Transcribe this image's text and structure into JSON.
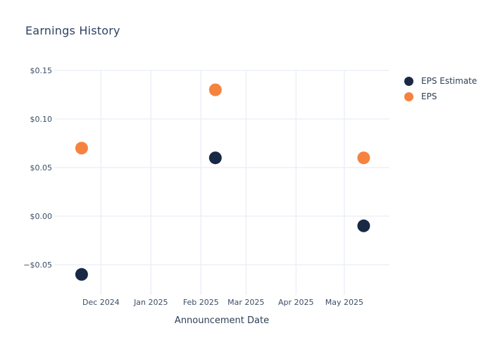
{
  "chart_data": {
    "type": "scatter",
    "title": "Earnings History",
    "xlabel": "Announcement Date",
    "ylabel": "",
    "legend_position": "right",
    "grid": true,
    "x_tick_labels": [
      "Dec 2024",
      "Jan 2025",
      "Feb 2025",
      "Mar 2025",
      "Apr 2025",
      "May 2025"
    ],
    "x_tick_dates": [
      "2024-12-01",
      "2025-01-01",
      "2025-02-01",
      "2025-03-01",
      "2025-04-01",
      "2025-05-01"
    ],
    "xlim": [
      "2024-11-02",
      "2025-05-29"
    ],
    "y_tick_labels": [
      "$0.15",
      "$0.10",
      "$0.05",
      "$0.00",
      "−$0.05"
    ],
    "y_ticks": [
      0.15,
      0.1,
      0.05,
      0.0,
      -0.05
    ],
    "ylim": [
      -0.0768,
      0.15
    ],
    "series": [
      {
        "name": "EPS Estimate",
        "color": "#172945",
        "points": [
          {
            "date": "2024-11-19",
            "value": -0.06
          },
          {
            "date": "2025-02-10",
            "value": 0.06
          },
          {
            "date": "2025-05-13",
            "value": -0.01
          }
        ]
      },
      {
        "name": "EPS",
        "color": "#f5833f",
        "points": [
          {
            "date": "2024-11-19",
            "value": 0.07
          },
          {
            "date": "2025-02-10",
            "value": 0.13
          },
          {
            "date": "2025-05-13",
            "value": 0.06
          }
        ]
      }
    ],
    "marker_diameter_px": 18
  },
  "colors": {
    "grid": "#e9eef6",
    "title_text": "#2e4262",
    "tick_text": "#3c4d63",
    "axis_title_text": "#2e4057",
    "background": "#ffffff"
  }
}
